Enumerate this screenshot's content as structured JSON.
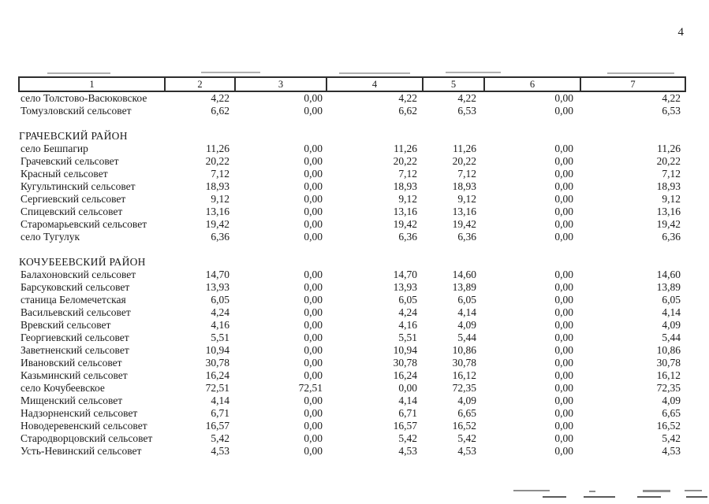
{
  "page": {
    "number": "4"
  },
  "table": {
    "columns": [
      "1",
      "2",
      "3",
      "4",
      "5",
      "6",
      "7"
    ],
    "rows": [
      {
        "type": "data",
        "name": "село Толстово-Васюковское",
        "values": [
          "4,22",
          "0,00",
          "4,22",
          "4,22",
          "0,00",
          "4,22"
        ]
      },
      {
        "type": "data",
        "name": "Томузловский сельсовет",
        "values": [
          "6,62",
          "0,00",
          "6,62",
          "6,53",
          "0,00",
          "6,53"
        ]
      },
      {
        "type": "spacer"
      },
      {
        "type": "section",
        "name": "ГРАЧЕВСКИЙ РАЙОН"
      },
      {
        "type": "data",
        "name": "село Бешпагир",
        "values": [
          "11,26",
          "0,00",
          "11,26",
          "11,26",
          "0,00",
          "11,26"
        ]
      },
      {
        "type": "data",
        "name": "Грачевский сельсовет",
        "values": [
          "20,22",
          "0,00",
          "20,22",
          "20,22",
          "0,00",
          "20,22"
        ]
      },
      {
        "type": "data",
        "name": "Красный сельсовет",
        "values": [
          "7,12",
          "0,00",
          "7,12",
          "7,12",
          "0,00",
          "7,12"
        ]
      },
      {
        "type": "data",
        "name": "Кугультинский сельсовет",
        "values": [
          "18,93",
          "0,00",
          "18,93",
          "18,93",
          "0,00",
          "18,93"
        ]
      },
      {
        "type": "data",
        "name": "Сергиевский сельсовет",
        "values": [
          "9,12",
          "0,00",
          "9,12",
          "9,12",
          "0,00",
          "9,12"
        ]
      },
      {
        "type": "data",
        "name": "Спицевский сельсовет",
        "values": [
          "13,16",
          "0,00",
          "13,16",
          "13,16",
          "0,00",
          "13,16"
        ]
      },
      {
        "type": "data",
        "name": "Старомарьевский сельсовет",
        "values": [
          "19,42",
          "0,00",
          "19,42",
          "19,42",
          "0,00",
          "19,42"
        ]
      },
      {
        "type": "data",
        "name": "село Тугулук",
        "values": [
          "6,36",
          "0,00",
          "6,36",
          "6,36",
          "0,00",
          "6,36"
        ]
      },
      {
        "type": "spacer"
      },
      {
        "type": "section",
        "name": "КОЧУБЕЕВСКИЙ РАЙОН"
      },
      {
        "type": "data",
        "name": "Балахоновский сельсовет",
        "values": [
          "14,70",
          "0,00",
          "14,70",
          "14,60",
          "0,00",
          "14,60"
        ]
      },
      {
        "type": "data",
        "name": "Барсуковский сельсовет",
        "values": [
          "13,93",
          "0,00",
          "13,93",
          "13,89",
          "0,00",
          "13,89"
        ]
      },
      {
        "type": "data",
        "name": "станица Беломечетская",
        "values": [
          "6,05",
          "0,00",
          "6,05",
          "6,05",
          "0,00",
          "6,05"
        ]
      },
      {
        "type": "data",
        "name": "Васильевский сельсовет",
        "values": [
          "4,24",
          "0,00",
          "4,24",
          "4,14",
          "0,00",
          "4,14"
        ]
      },
      {
        "type": "data",
        "name": "Вревский сельсовет",
        "values": [
          "4,16",
          "0,00",
          "4,16",
          "4,09",
          "0,00",
          "4,09"
        ]
      },
      {
        "type": "data",
        "name": "Георгиевский сельсовет",
        "values": [
          "5,51",
          "0,00",
          "5,51",
          "5,44",
          "0,00",
          "5,44"
        ]
      },
      {
        "type": "data",
        "name": "Заветненский сельсовет",
        "values": [
          "10,94",
          "0,00",
          "10,94",
          "10,86",
          "0,00",
          "10,86"
        ]
      },
      {
        "type": "data",
        "name": "Ивановский сельсовет",
        "values": [
          "30,78",
          "0,00",
          "30,78",
          "30,78",
          "0,00",
          "30,78"
        ]
      },
      {
        "type": "data",
        "name": "Казьминский сельсовет",
        "values": [
          "16,24",
          "0,00",
          "16,24",
          "16,12",
          "0,00",
          "16,12"
        ]
      },
      {
        "type": "data",
        "name": "село Кочубеевское",
        "values": [
          "72,51",
          "72,51",
          "0,00",
          "72,35",
          "0,00",
          "72,35"
        ]
      },
      {
        "type": "data",
        "name": "Мищенский сельсовет",
        "values": [
          "4,14",
          "0,00",
          "4,14",
          "4,09",
          "0,00",
          "4,09"
        ]
      },
      {
        "type": "data",
        "name": "Надзорненский сельсовет",
        "values": [
          "6,71",
          "0,00",
          "6,71",
          "6,65",
          "0,00",
          "6,65"
        ]
      },
      {
        "type": "data",
        "name": "Новодеревенский сельсовет",
        "values": [
          "16,57",
          "0,00",
          "16,57",
          "16,52",
          "0,00",
          "16,52"
        ]
      },
      {
        "type": "data",
        "name": "Стародворцовский сельсовет",
        "values": [
          "5,42",
          "0,00",
          "5,42",
          "5,42",
          "0,00",
          "5,42"
        ]
      },
      {
        "type": "data",
        "name": "Усть-Невинский сельсовет",
        "values": [
          "4,53",
          "0,00",
          "4,53",
          "4,53",
          "0,00",
          "4,53"
        ]
      }
    ]
  },
  "colors": {
    "text": "#1b1b1b",
    "table_border": "#2e2e2e",
    "page_background": "#ffffff"
  }
}
